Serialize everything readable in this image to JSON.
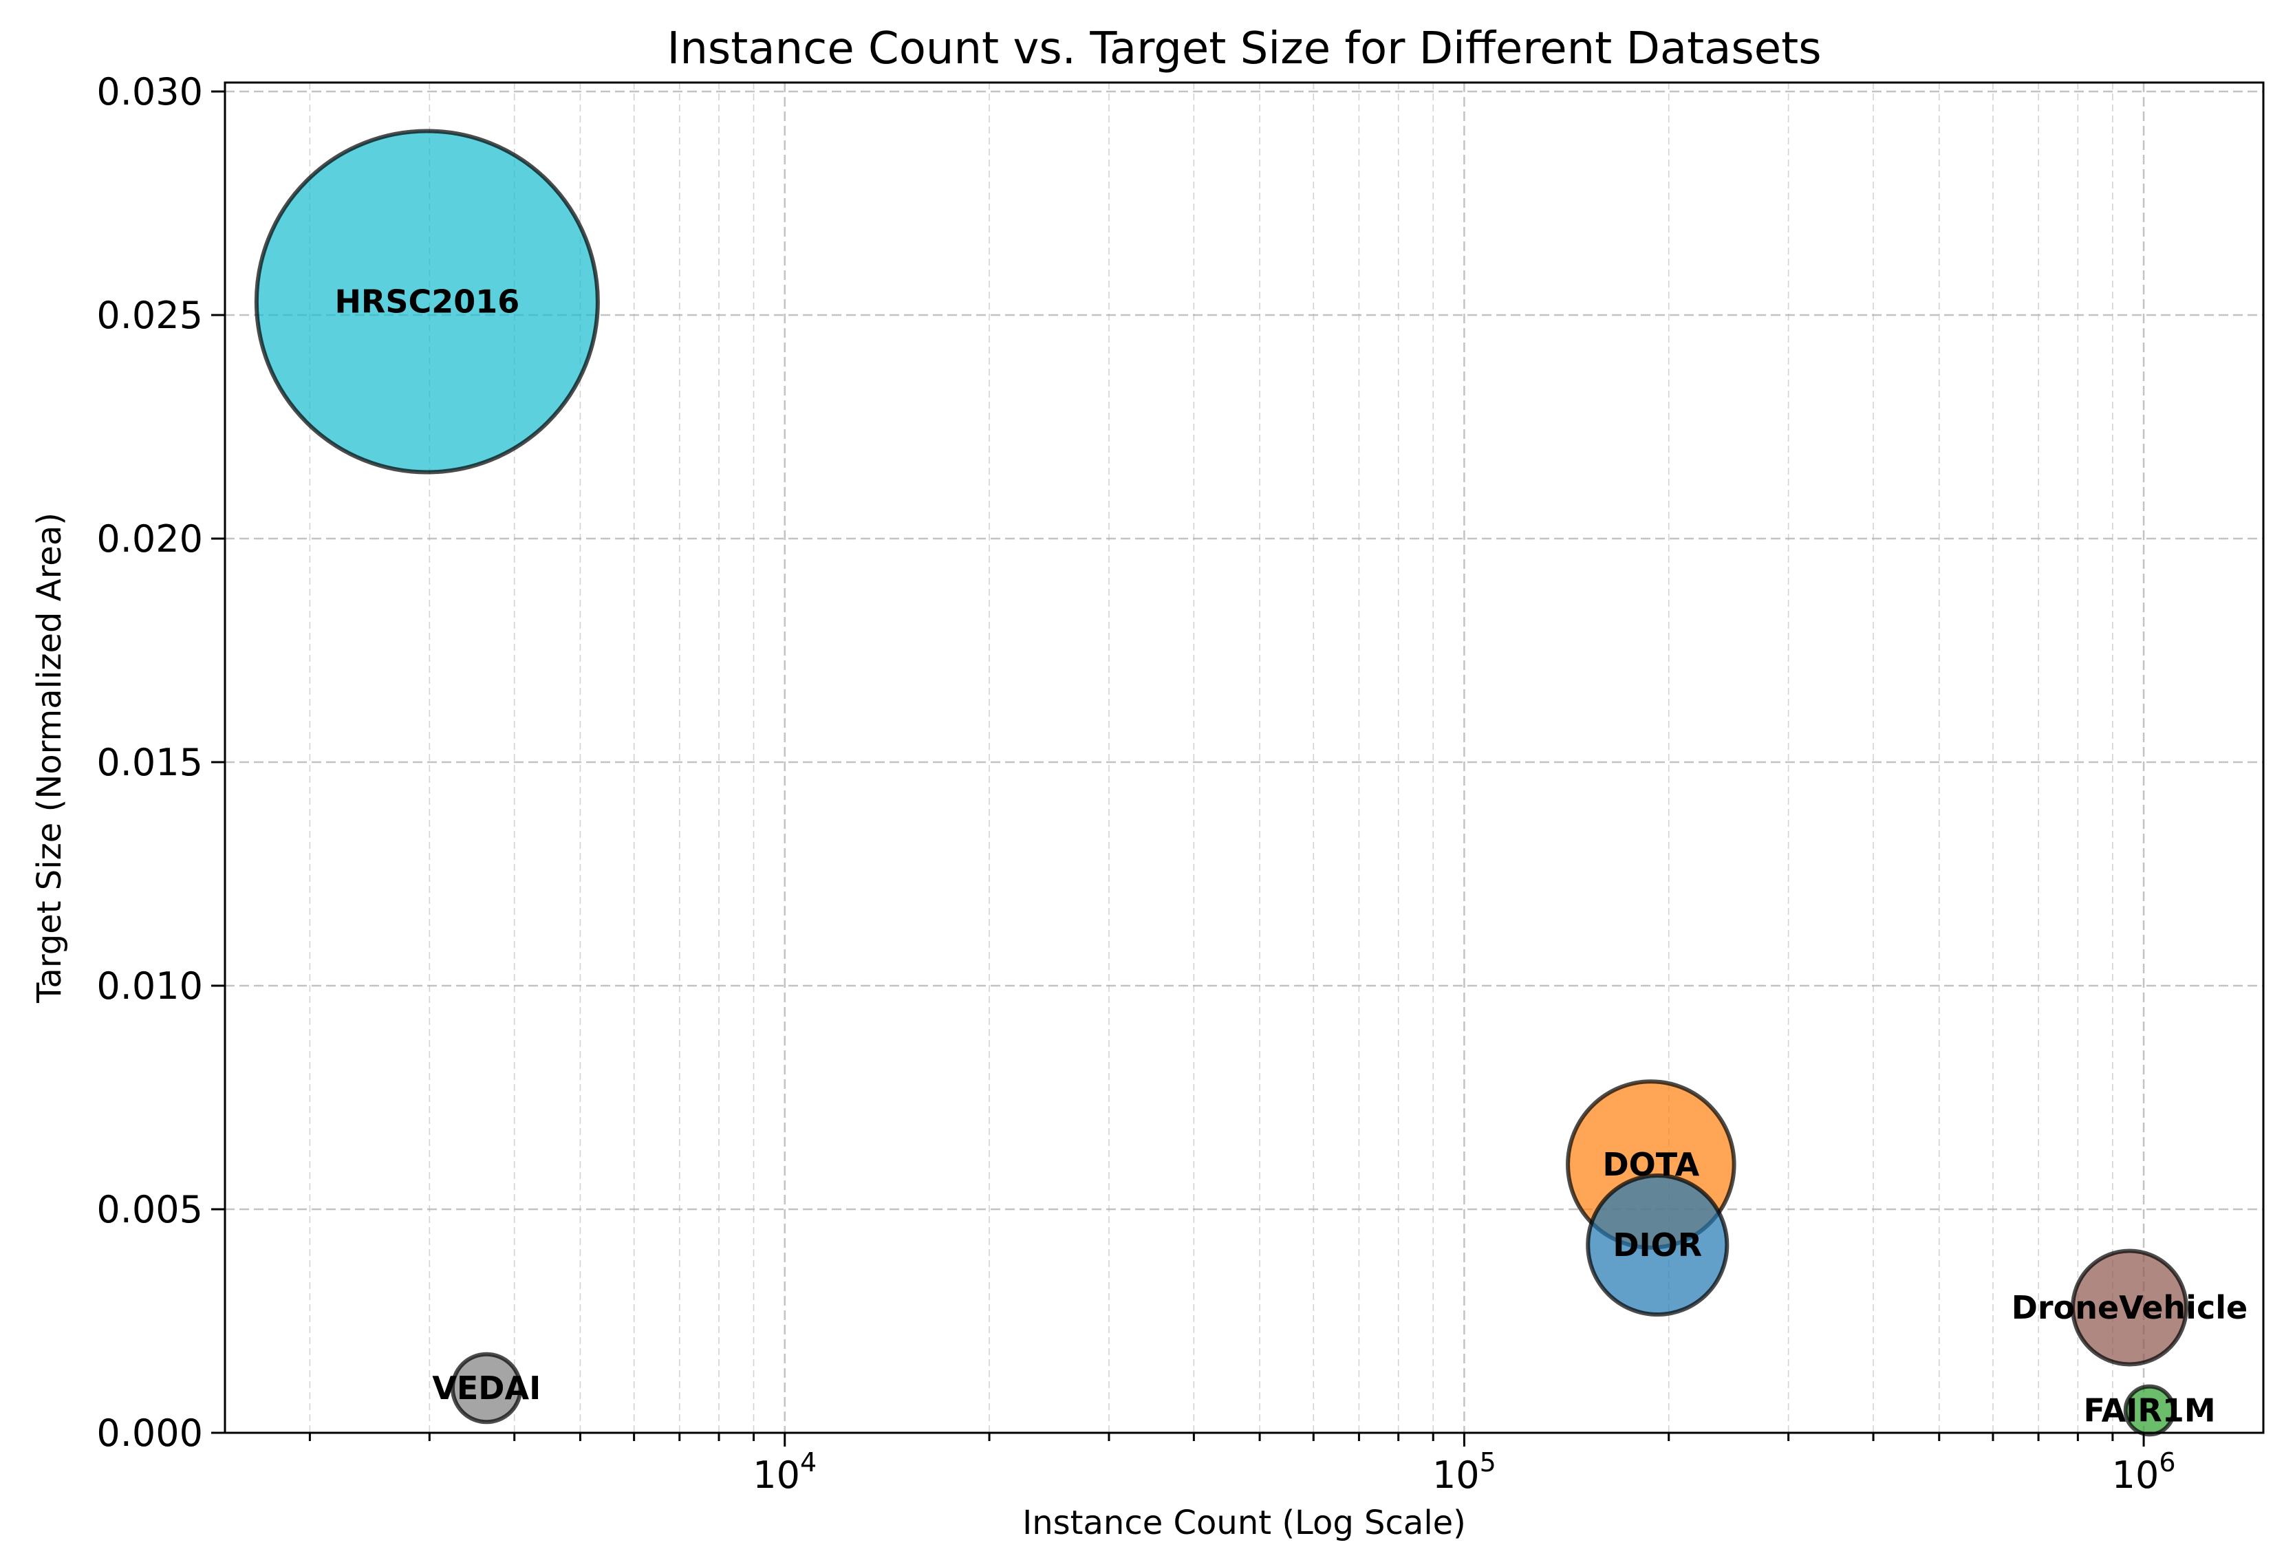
{
  "chart_data": {
    "type": "scatter",
    "title": "Instance Count vs. Target Size for Different Datasets",
    "xlabel": "Instance Count (Log Scale)",
    "ylabel": "Target Size (Normalized Area)",
    "xscale": "log",
    "xlim": [
      1500,
      1500000
    ],
    "ylim": [
      0,
      0.0302
    ],
    "x_ticks": [
      {
        "base": "10",
        "exp": "4",
        "value": 10000
      },
      {
        "base": "10",
        "exp": "5",
        "value": 100000
      },
      {
        "base": "10",
        "exp": "6",
        "value": 1000000
      }
    ],
    "y_ticks": [
      "0.000",
      "0.005",
      "0.010",
      "0.015",
      "0.020",
      "0.025",
      "0.030"
    ],
    "grid": true,
    "points": [
      {
        "name": "HRSC2016",
        "x": 2976,
        "y": 0.0253,
        "color": "#17becf",
        "bubble_size": 0.0253
      },
      {
        "name": "VEDAI",
        "x": 3640,
        "y": 0.001,
        "color": "#7f7f7f",
        "bubble_size": 0.001
      },
      {
        "name": "DOTA",
        "x": 188282,
        "y": 0.006,
        "color": "#ff7f0e",
        "bubble_size": 0.006
      },
      {
        "name": "DIOR",
        "x": 192472,
        "y": 0.0042,
        "color": "#1f77b4",
        "bubble_size": 0.0042
      },
      {
        "name": "DroneVehicle",
        "x": 953087,
        "y": 0.0028,
        "color": "#8c564b",
        "bubble_size": 0.0028
      },
      {
        "name": "FAIR1M",
        "x": 1020000,
        "y": 0.0005,
        "color": "#2ca02c",
        "bubble_size": 0.0005
      }
    ]
  }
}
